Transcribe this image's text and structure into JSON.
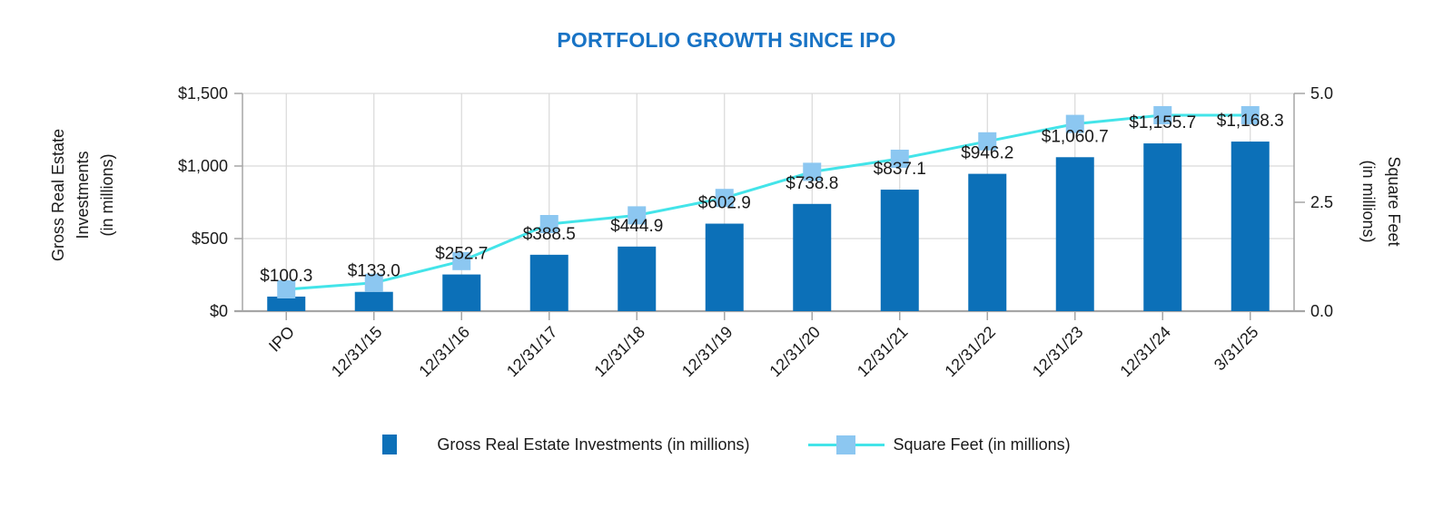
{
  "title": "PORTFOLIO GROWTH SINCE IPO",
  "colors": {
    "title": "#1873C5",
    "bar": "#0C70B8",
    "line": "#43E4E9",
    "marker": "#8CC7F1",
    "grid": "#D9D9D9",
    "axis": "#A6A6A6",
    "text": "#1A1A1A"
  },
  "chart_data": {
    "type": "combo-bar-line",
    "title": "PORTFOLIO GROWTH SINCE IPO",
    "categories": [
      "IPO",
      "12/31/15",
      "12/31/16",
      "12/31/17",
      "12/31/18",
      "12/31/19",
      "12/31/20",
      "12/31/21",
      "12/31/22",
      "12/31/23",
      "12/31/24",
      "3/31/25"
    ],
    "series": [
      {
        "name": "Gross Real Estate Investments (in millions)",
        "type": "bar",
        "axis": "left",
        "values": [
          100.3,
          133.0,
          252.7,
          388.5,
          444.9,
          602.9,
          738.8,
          837.1,
          946.2,
          1060.7,
          1155.7,
          1168.3
        ],
        "labels": [
          "$100.3",
          "$133.0",
          "$252.7",
          "$388.5",
          "$444.9",
          "$602.9",
          "$738.8",
          "$837.1",
          "$946.2",
          "$1,060.7",
          "$1,155.7",
          "$1,168.3"
        ]
      },
      {
        "name": "Square Feet (in millions)",
        "type": "line",
        "axis": "right",
        "values": [
          0.5,
          0.65,
          1.15,
          2.0,
          2.2,
          2.6,
          3.2,
          3.5,
          3.9,
          4.3,
          4.5,
          4.5
        ]
      }
    ],
    "left_axis": {
      "title_lines": [
        "Gross Real Estate",
        "Investments",
        "(in millions)"
      ],
      "range": [
        0,
        1500
      ],
      "ticks": [
        {
          "value": 0,
          "label": "$0"
        },
        {
          "value": 500,
          "label": "$500"
        },
        {
          "value": 1000,
          "label": "$1,000"
        },
        {
          "value": 1500,
          "label": "$1,500"
        }
      ]
    },
    "right_axis": {
      "title_lines": [
        "Square Feet",
        "(in millions)"
      ],
      "range": [
        0,
        5
      ],
      "ticks": [
        {
          "value": 0,
          "label": "0.0"
        },
        {
          "value": 2.5,
          "label": "2.5"
        },
        {
          "value": 5,
          "label": "5.0"
        }
      ]
    },
    "grid": true,
    "legend_position": "bottom"
  }
}
